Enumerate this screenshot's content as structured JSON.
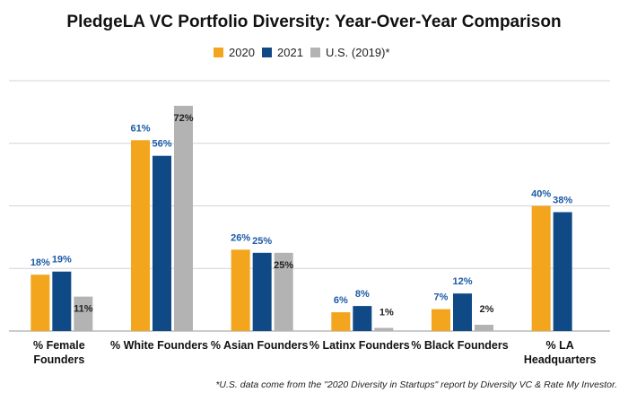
{
  "chart_data": {
    "type": "bar",
    "title": "PledgeLA VC Portfolio Diversity: Year-Over-Year Comparison",
    "categories": [
      [
        "% Female",
        "Founders"
      ],
      [
        "% White Founders"
      ],
      [
        "% Asian Founders"
      ],
      [
        "% Latinx Founders"
      ],
      [
        "% Black Founders"
      ],
      [
        "% LA",
        "Headquarters"
      ]
    ],
    "series": [
      {
        "name": "2020",
        "color": "#f2a51d",
        "label_color": "#1c5aa6",
        "values": [
          18,
          61,
          26,
          6,
          7,
          40
        ]
      },
      {
        "name": "2021",
        "color": "#0f4a87",
        "label_color": "#1c5aa6",
        "values": [
          19,
          56,
          25,
          8,
          12,
          38
        ]
      },
      {
        "name": "U.S. (2019)*",
        "color": "#b3b3b3",
        "label_color": "#222222",
        "values": [
          11,
          72,
          25,
          1,
          2,
          null
        ]
      }
    ],
    "value_suffix": "%",
    "ylim": [
      0,
      80
    ],
    "grid": true,
    "legend_position": "top-center",
    "footnote": "*U.S. data come from the \"2020 Diversity in Startups\" report by Diversity VC & Rate My Investor."
  }
}
